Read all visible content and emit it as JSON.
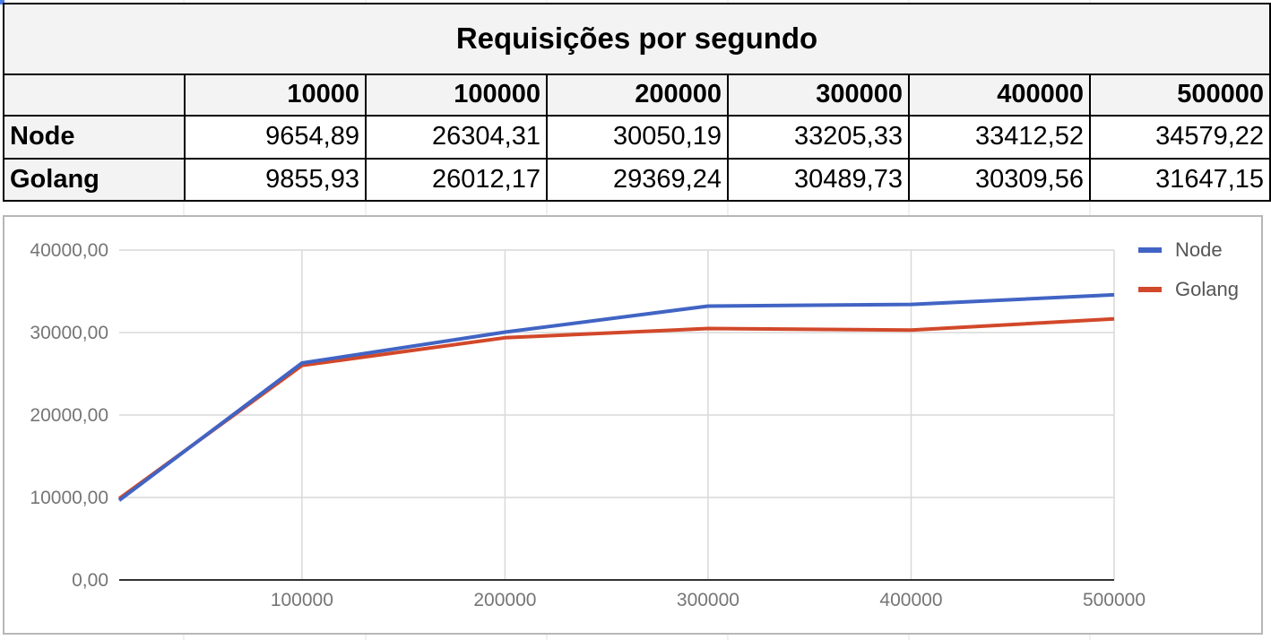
{
  "table": {
    "title": "Requisições por segundo",
    "columns": [
      "10000",
      "100000",
      "200000",
      "300000",
      "400000",
      "500000"
    ],
    "rows": [
      {
        "label": "Node",
        "values": [
          "9654,89",
          "26304,31",
          "30050,19",
          "33205,33",
          "33412,52",
          "34579,22"
        ]
      },
      {
        "label": "Golang",
        "values": [
          "9855,93",
          "26012,17",
          "29369,24",
          "30489,73",
          "30309,56",
          "31647,15"
        ]
      }
    ]
  },
  "chart_data": {
    "type": "line",
    "title": "",
    "xlabel": "",
    "ylabel": "",
    "x": [
      10000,
      100000,
      200000,
      300000,
      400000,
      500000
    ],
    "x_tick_labels": [
      "100000",
      "200000",
      "300000",
      "400000",
      "500000"
    ],
    "x_ticks": [
      100000,
      200000,
      300000,
      400000,
      500000
    ],
    "xlim": [
      10000,
      500000
    ],
    "y_tick_labels": [
      "0,00",
      "10000,00",
      "20000,00",
      "30000,00",
      "40000,00"
    ],
    "y_ticks": [
      0,
      10000,
      20000,
      30000,
      40000
    ],
    "ylim": [
      0,
      40000
    ],
    "grid": true,
    "legend_position": "right",
    "series": [
      {
        "name": "Node",
        "color": "#4164c4",
        "values": [
          9654.89,
          26304.31,
          30050.19,
          33205.33,
          33412.52,
          34579.22
        ]
      },
      {
        "name": "Golang",
        "color": "#d2482a",
        "values": [
          9855.93,
          26012.17,
          29369.24,
          30489.73,
          30309.56,
          31647.15
        ]
      }
    ]
  }
}
